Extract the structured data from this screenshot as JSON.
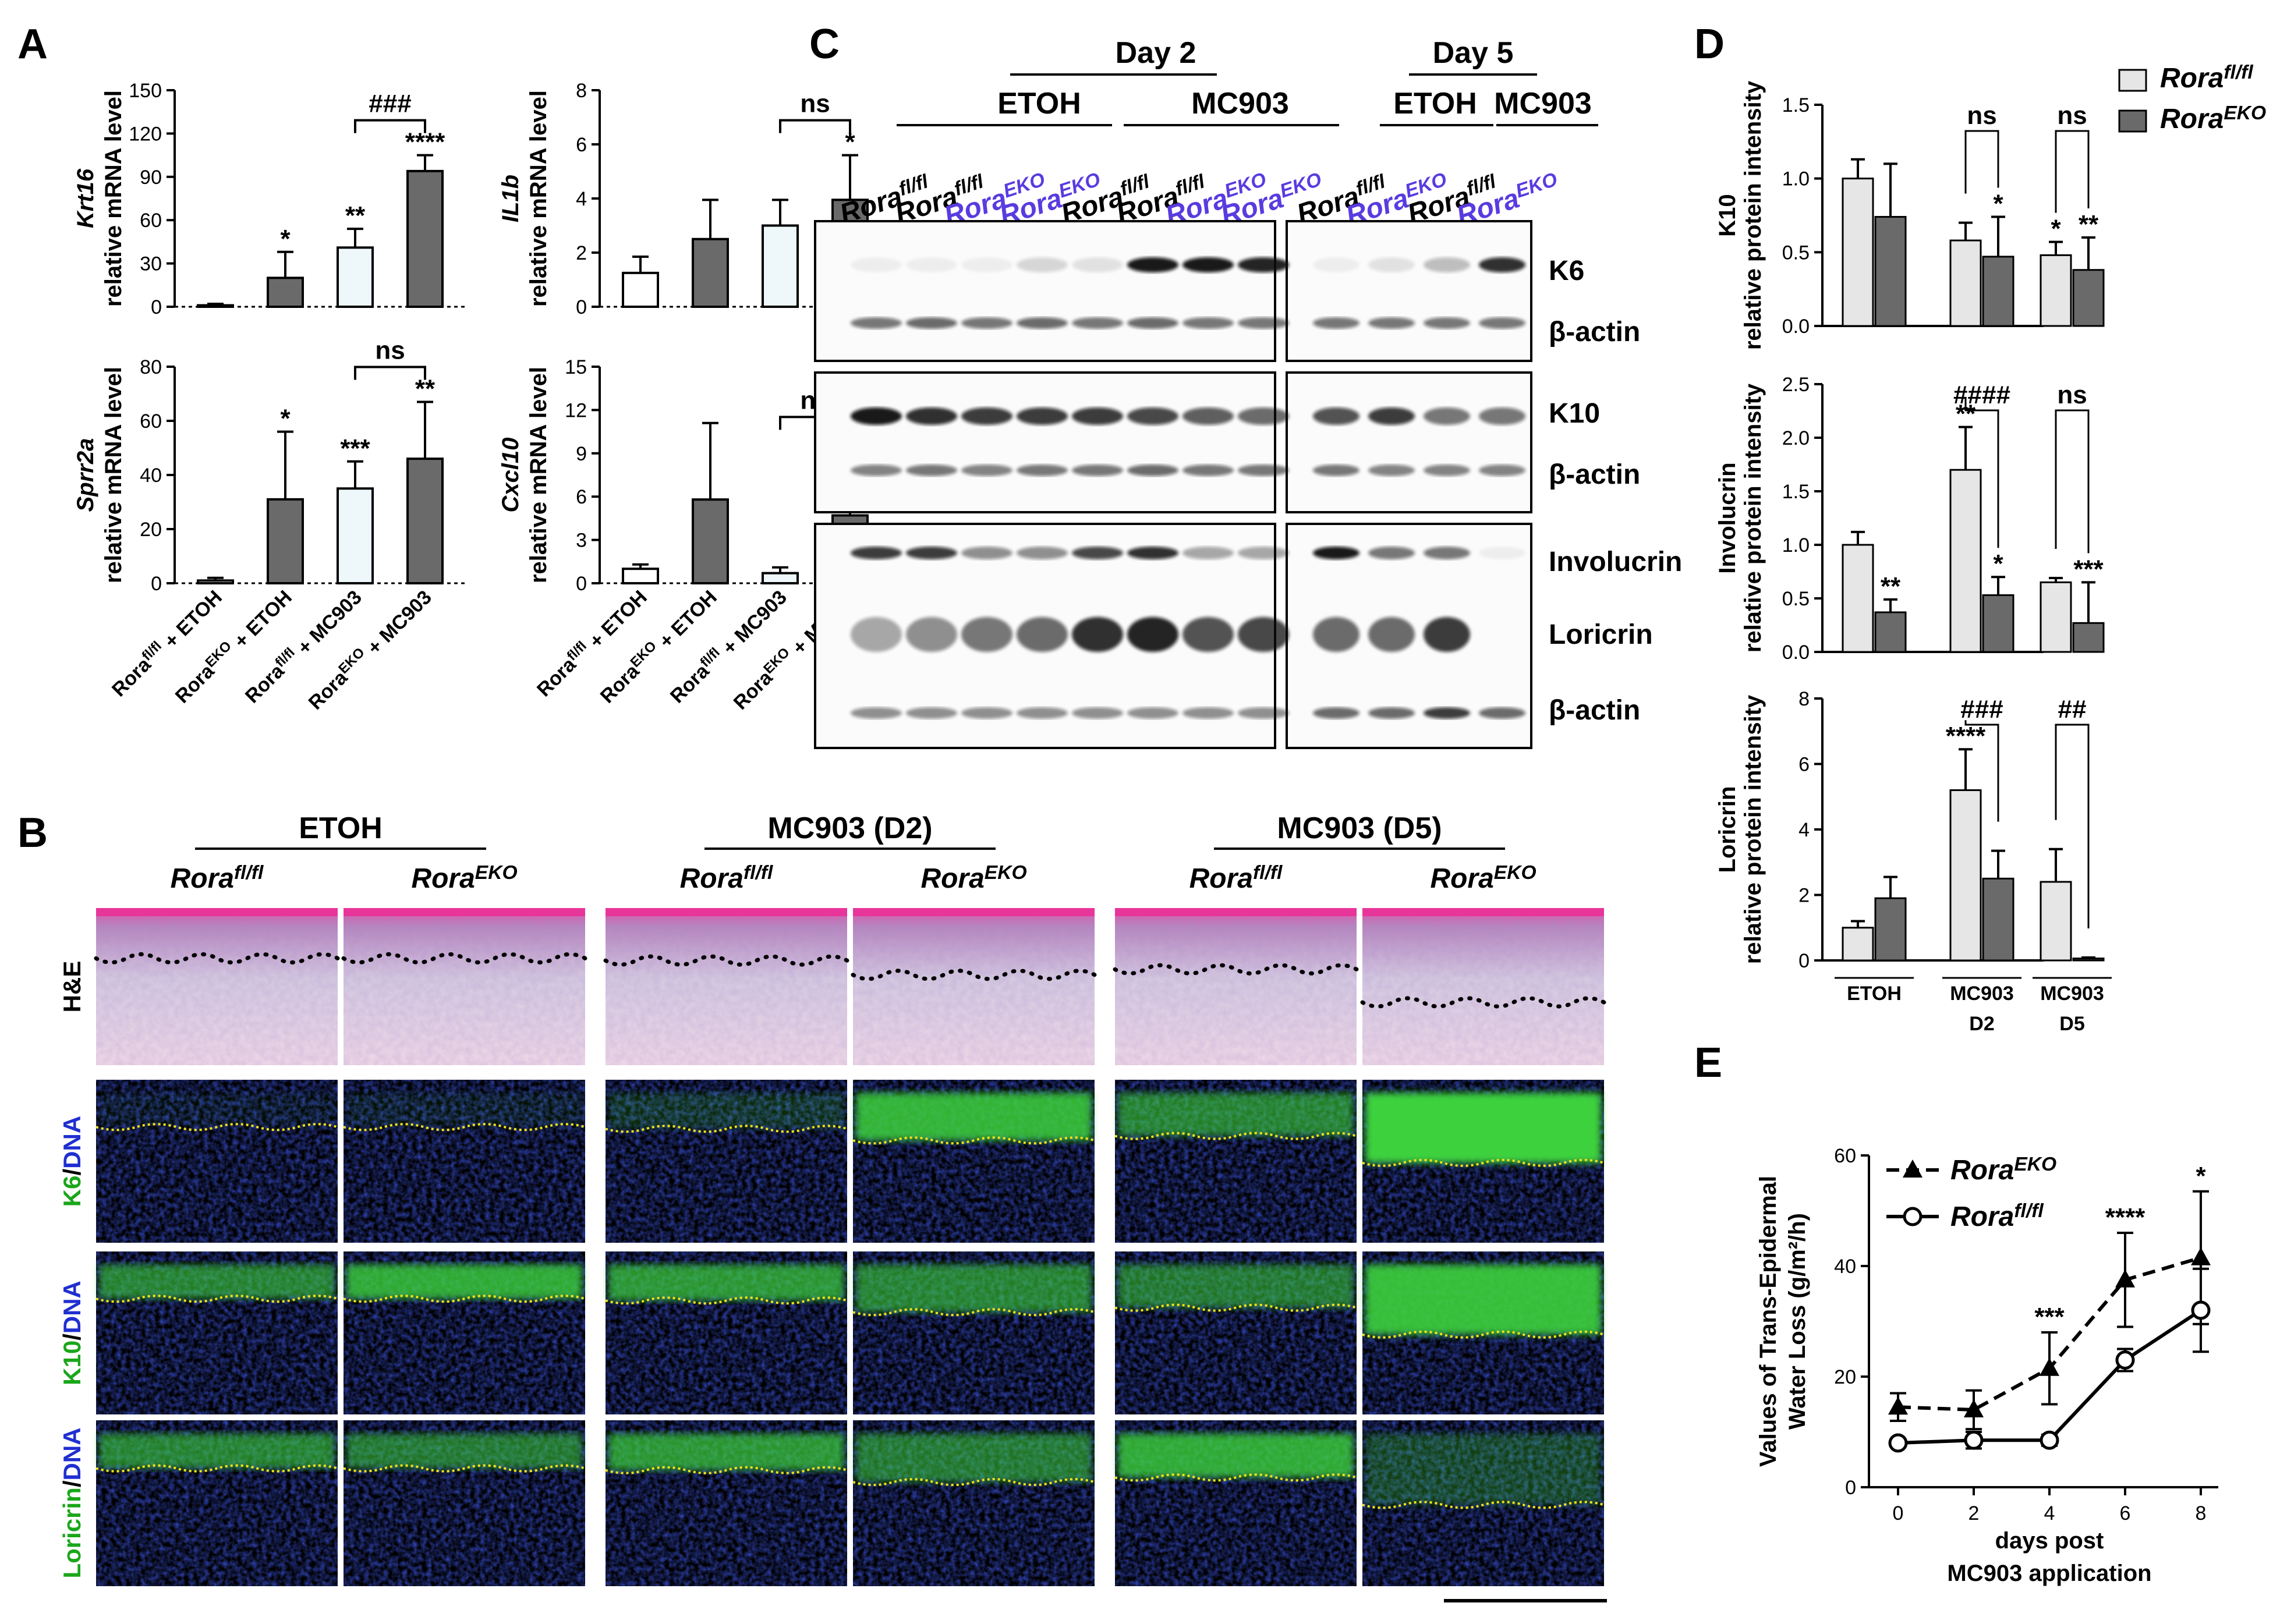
{
  "panels": {
    "A": {
      "label": "A",
      "charts": [
        {
          "id": "krt16",
          "gene": "Krt16",
          "ylabel": "relative mRNA level",
          "ylim": [
            0,
            150
          ],
          "yticks": [
            "0",
            "30",
            "60",
            "90",
            "120",
            "150"
          ],
          "values": [
            1,
            20,
            41,
            94
          ],
          "errors": [
            1,
            18,
            13,
            11
          ],
          "sig": [
            "",
            "*",
            "**",
            "****"
          ],
          "bracket": {
            "from": 2,
            "to": 3,
            "label": "###"
          }
        },
        {
          "id": "il1b",
          "gene": "IL1b",
          "ylabel": "relative mRNA level",
          "ylim": [
            0,
            8
          ],
          "yticks": [
            "0",
            "2",
            "4",
            "6",
            "8"
          ],
          "values": [
            1.25,
            2.5,
            3.0,
            3.95
          ],
          "errors": [
            0.6,
            1.45,
            0.95,
            1.65
          ],
          "sig": [
            "",
            "",
            "",
            "*"
          ],
          "bracket": {
            "from": 2,
            "to": 3,
            "label": "ns"
          }
        },
        {
          "id": "sprr2a",
          "gene": "Sprr2a",
          "ylabel": "relative mRNA level",
          "ylim": [
            0,
            80
          ],
          "yticks": [
            "0",
            "20",
            "40",
            "60",
            "80"
          ],
          "values": [
            1,
            31,
            35,
            46
          ],
          "errors": [
            1,
            25,
            10,
            21
          ],
          "sig": [
            "",
            "*",
            "***",
            "**"
          ],
          "bracket": {
            "from": 2,
            "to": 3,
            "label": "ns"
          }
        },
        {
          "id": "cxcl10",
          "gene": "Cxcl10",
          "ylabel": "relative mRNA level",
          "ylim": [
            0,
            15
          ],
          "yticks": [
            "0",
            "3",
            "6",
            "9",
            "12",
            "15"
          ],
          "values": [
            1.0,
            5.8,
            0.7,
            4.7
          ],
          "errors": [
            0.3,
            5.3,
            0.4,
            4.4
          ],
          "sig": [
            "",
            "",
            "",
            "*"
          ],
          "bracket": {
            "from": 2,
            "to": 3,
            "label": "ns"
          }
        }
      ],
      "categories": [
        {
          "pre": "Rora",
          "sup": "fl/fl",
          "post": " + ETOH"
        },
        {
          "pre": "Rora",
          "sup": "EKO",
          "post": " + ETOH"
        },
        {
          "pre": "Rora",
          "sup": "fl/fl",
          "post": " + MC903"
        },
        {
          "pre": "Rora",
          "sup": "EKO",
          "post": " + MC903"
        }
      ],
      "colors": {
        "fl": "#ffffff",
        "fl_mc": "#eef8fb",
        "eko": "#6a6a6a"
      }
    },
    "B": {
      "label": "B",
      "groups": [
        "ETOH",
        "MC903 (D2)",
        "MC903 (D5)"
      ],
      "genotypes": [
        {
          "pre": "Rora",
          "sup": "fl/fl"
        },
        {
          "pre": "Rora",
          "sup": "EKO"
        },
        {
          "pre": "Rora",
          "sup": "fl/fl"
        },
        {
          "pre": "Rora",
          "sup": "EKO"
        },
        {
          "pre": "Rora",
          "sup": "fl/fl"
        },
        {
          "pre": "Rora",
          "sup": "EKO"
        }
      ],
      "rows": [
        {
          "parts": [
            {
              "t": "H&E",
              "c": "#000000"
            }
          ]
        },
        {
          "parts": [
            {
              "t": "K6",
              "c": "#1aa61a"
            },
            {
              "t": "/",
              "c": "#000000"
            },
            {
              "t": "DNA",
              "c": "#1f2fd0"
            }
          ]
        },
        {
          "parts": [
            {
              "t": "K10",
              "c": "#1aa61a"
            },
            {
              "t": "/",
              "c": "#000000"
            },
            {
              "t": "DNA",
              "c": "#1f2fd0"
            }
          ]
        },
        {
          "parts": [
            {
              "t": "Loricrin",
              "c": "#1aa61a"
            },
            {
              "t": "/",
              "c": "#000000"
            },
            {
              "t": "DNA",
              "c": "#1f2fd0"
            }
          ]
        }
      ]
    },
    "C": {
      "label": "C",
      "day2": "Day 2",
      "day5": "Day 5",
      "etoh": "ETOH",
      "mc903": "MC903",
      "lanes_d2": [
        {
          "pre": "Rora",
          "sup": "fl/fl",
          "blue": false
        },
        {
          "pre": "Rora",
          "sup": "fl/fl",
          "blue": false
        },
        {
          "pre": "Rora",
          "sup": "EKO",
          "blue": true
        },
        {
          "pre": "Rora",
          "sup": "EKO",
          "blue": true
        },
        {
          "pre": "Rora",
          "sup": "fl/fl",
          "blue": false
        },
        {
          "pre": "Rora",
          "sup": "fl/fl",
          "blue": false
        },
        {
          "pre": "Rora",
          "sup": "EKO",
          "blue": true
        },
        {
          "pre": "Rora",
          "sup": "EKO",
          "blue": true
        }
      ],
      "lanes_d5": [
        {
          "pre": "Rora",
          "sup": "fl/fl",
          "blue": false
        },
        {
          "pre": "Rora",
          "sup": "EKO",
          "blue": true
        },
        {
          "pre": "Rora",
          "sup": "fl/fl",
          "blue": false
        },
        {
          "pre": "Rora",
          "sup": "EKO",
          "blue": true
        }
      ],
      "blot_labels": [
        "K6",
        "β-actin",
        "K10",
        "β-actin",
        "Involucrin",
        "Loricrin",
        "β-actin"
      ]
    },
    "D": {
      "label": "D",
      "legend": [
        {
          "pre": "Rora",
          "sup": "fl/fl",
          "color": "#e6e6e6"
        },
        {
          "pre": "Rora",
          "sup": "EKO",
          "color": "#6a6a6a"
        }
      ],
      "xcats": [
        [
          "ETOH",
          ""
        ],
        [
          "MC903",
          "D2"
        ],
        [
          "MC903",
          "D5"
        ]
      ],
      "charts": [
        {
          "id": "k10",
          "name": "K10",
          "ylabel": "relative protein intensity",
          "ylim": [
            0,
            1.5
          ],
          "yticks": [
            "0.0",
            "0.5",
            "1.0",
            "1.5"
          ],
          "fl": [
            1.0,
            0.58,
            0.48
          ],
          "fl_err": [
            0.13,
            0.12,
            0.09
          ],
          "eko": [
            0.74,
            0.47,
            0.38
          ],
          "eko_err": [
            0.36,
            0.27,
            0.22
          ],
          "fl_sig": [
            "",
            "",
            "*"
          ],
          "eko_sig": [
            "",
            "*",
            "**"
          ],
          "brackets": [
            "",
            "ns",
            "ns"
          ]
        },
        {
          "id": "involucrin",
          "name": "Involucrin",
          "ylabel": "relative protein intensity",
          "ylim": [
            0,
            2.5
          ],
          "yticks": [
            "0.0",
            "0.5",
            "1.0",
            "1.5",
            "2.0",
            "2.5"
          ],
          "fl": [
            1.0,
            1.7,
            0.65
          ],
          "fl_err": [
            0.12,
            0.4,
            0.04
          ],
          "eko": [
            0.37,
            0.53,
            0.27
          ],
          "eko_err": [
            0.12,
            0.17,
            0.38
          ],
          "fl_sig": [
            "",
            "**",
            ""
          ],
          "eko_sig": [
            "**",
            "*",
            "***"
          ],
          "brackets": [
            "",
            "####",
            "ns"
          ]
        },
        {
          "id": "loricrin",
          "name": "Loricrin",
          "ylabel": "relative protein intensity",
          "ylim": [
            0,
            8
          ],
          "yticks": [
            "0",
            "2",
            "4",
            "6",
            "8"
          ],
          "fl": [
            1.0,
            5.2,
            2.4
          ],
          "fl_err": [
            0.2,
            1.25,
            1.0
          ],
          "eko": [
            1.9,
            2.5,
            0.06
          ],
          "eko_err": [
            0.65,
            0.85,
            0.03
          ],
          "fl_sig": [
            "",
            "****",
            ""
          ],
          "eko_sig": [
            "",
            "",
            ""
          ],
          "brackets": [
            "",
            "###",
            "##"
          ]
        }
      ]
    },
    "E": {
      "label": "E",
      "chart_data": {
        "type": "line",
        "x": [
          0,
          2,
          4,
          6,
          8
        ],
        "xlabel_lines": [
          "days post",
          "MC903 application"
        ],
        "ylabel_lines": [
          "Values of Trans-Epidermal",
          "Water Loss (g/m²/h)"
        ],
        "ylim": [
          0,
          60
        ],
        "xlim": [
          0,
          8
        ],
        "yticks": [
          "0",
          "20",
          "40",
          "60"
        ],
        "xticks": [
          "0",
          "2",
          "4",
          "6",
          "8"
        ],
        "series": [
          {
            "name_pre": "Rora",
            "name_sup": "EKO",
            "values": [
              14.5,
              14,
              21.5,
              37.5,
              41.5
            ],
            "errors": [
              2.5,
              3.5,
              6.5,
              8.5,
              12
            ],
            "marker": "triangle",
            "dash": true
          },
          {
            "name_pre": "Rora",
            "name_sup": "fl/fl",
            "values": [
              8,
              8.5,
              8.5,
              23,
              32
            ],
            "errors": [
              0.5,
              1.5,
              1,
              2,
              7.5
            ],
            "marker": "circle",
            "dash": false
          }
        ],
        "sig": [
          "",
          "",
          "***",
          "****",
          "*"
        ]
      }
    }
  }
}
